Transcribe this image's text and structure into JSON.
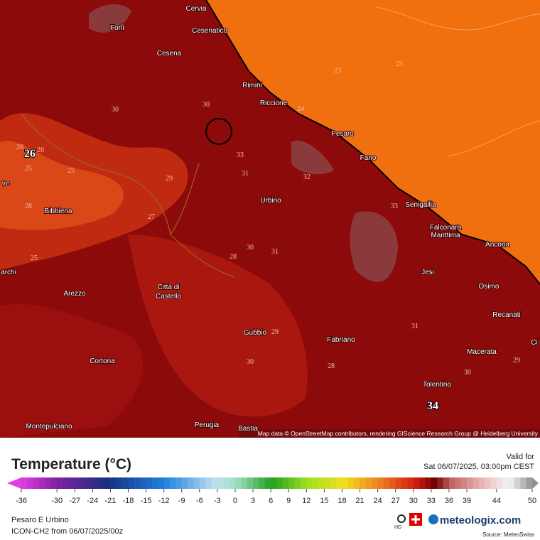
{
  "map": {
    "cities": [
      "Cervia",
      "Forlì",
      "Cesenatico",
      "Cesena",
      "Rimini",
      "Riccione",
      "Pesaro",
      "Fano",
      "Urbino",
      "Bibbiena",
      "Senigallia",
      "Falconara",
      "Marittima",
      "Ancona",
      "Jesi",
      "Osimo",
      "Arezzo",
      "Città di",
      "Castello",
      "Recanati",
      "Gubbio",
      "Fabriano",
      "Macerata",
      "Cortona",
      "Tolentino",
      "Montepulciano",
      "Perugia",
      "Bastia",
      "ve",
      "archi",
      "Ci"
    ],
    "contour_labels": [
      "23",
      "23",
      "24",
      "26",
      "25",
      "25",
      "30",
      "28",
      "25",
      "29",
      "27",
      "30",
      "33",
      "31",
      "33",
      "30",
      "32",
      "28",
      "29",
      "30",
      "31",
      "28",
      "30",
      "29",
      "26",
      "31"
    ],
    "highlight_labels": [
      "26",
      "34"
    ],
    "attribution": "Map data © OpenStreetMap contributors, rendering GIScience Research Group @ Heidelberg University"
  },
  "footer": {
    "title": "Temperature (°C)",
    "valid_label": "Valid for",
    "valid_time": "Sat 06/07/2025, 03:00pm CEST",
    "scale_ticks": [
      -36,
      -30,
      -27,
      -24,
      -21,
      -18,
      -15,
      -12,
      -9,
      -6,
      -3,
      0,
      3,
      6,
      9,
      12,
      15,
      18,
      21,
      24,
      27,
      30,
      33,
      36,
      39,
      44,
      50
    ],
    "region": "Pesaro E Urbino",
    "model": "ICON-CH2 from  06/07/2025/00z",
    "hd": "HD",
    "brand": "meteologix.com",
    "source": "Source: MeteoSwiss"
  }
}
